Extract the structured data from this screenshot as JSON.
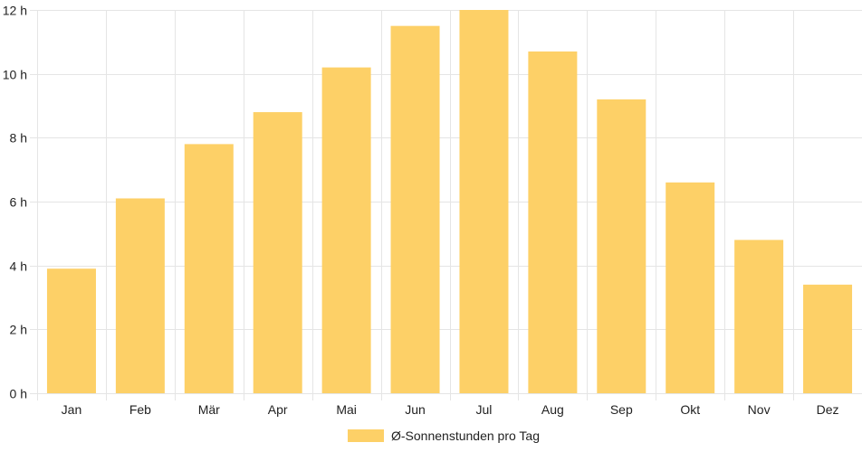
{
  "chart_data": {
    "type": "bar",
    "categories": [
      "Jan",
      "Feb",
      "Mär",
      "Apr",
      "Mai",
      "Jun",
      "Jul",
      "Aug",
      "Sep",
      "Okt",
      "Nov",
      "Dez"
    ],
    "series": [
      {
        "name": "Ø-Sonnenstunden pro Tag",
        "values": [
          3.9,
          6.1,
          7.8,
          8.8,
          10.2,
          11.5,
          12.0,
          10.7,
          9.2,
          6.6,
          4.8,
          3.4
        ]
      }
    ],
    "y_ticks": [
      "0 h",
      "2 h",
      "4 h",
      "6 h",
      "8 h",
      "10 h",
      "12 h"
    ],
    "ylim": [
      0,
      12
    ],
    "grid": true,
    "legend_position": "bottom",
    "bar_color": "#fdd067",
    "grid_color": "#e5e5e5"
  }
}
